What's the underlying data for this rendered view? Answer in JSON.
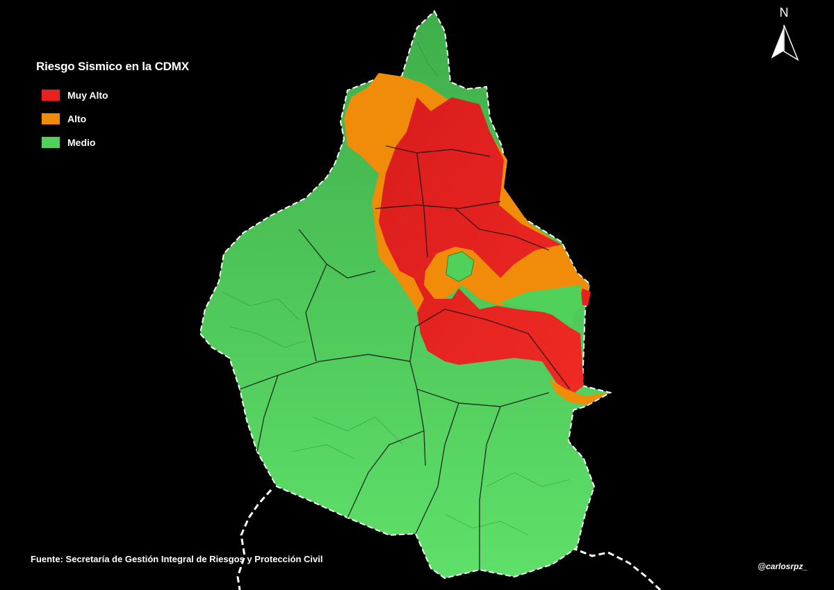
{
  "map": {
    "title": "Riesgo Sismico en la CDMX",
    "legend": [
      {
        "label": "Muy Alto",
        "color": "#e8201f"
      },
      {
        "label": "Alto",
        "color": "#f08c0a"
      },
      {
        "label": "Medio",
        "color": "#4fd15a"
      }
    ],
    "source": "Fuente: Secretaría de Gestión Integral de Riesgos y Protección Civil",
    "credit": "@carlosrpz_",
    "north_label": "N",
    "north_icon": "north-arrow-icon"
  }
}
